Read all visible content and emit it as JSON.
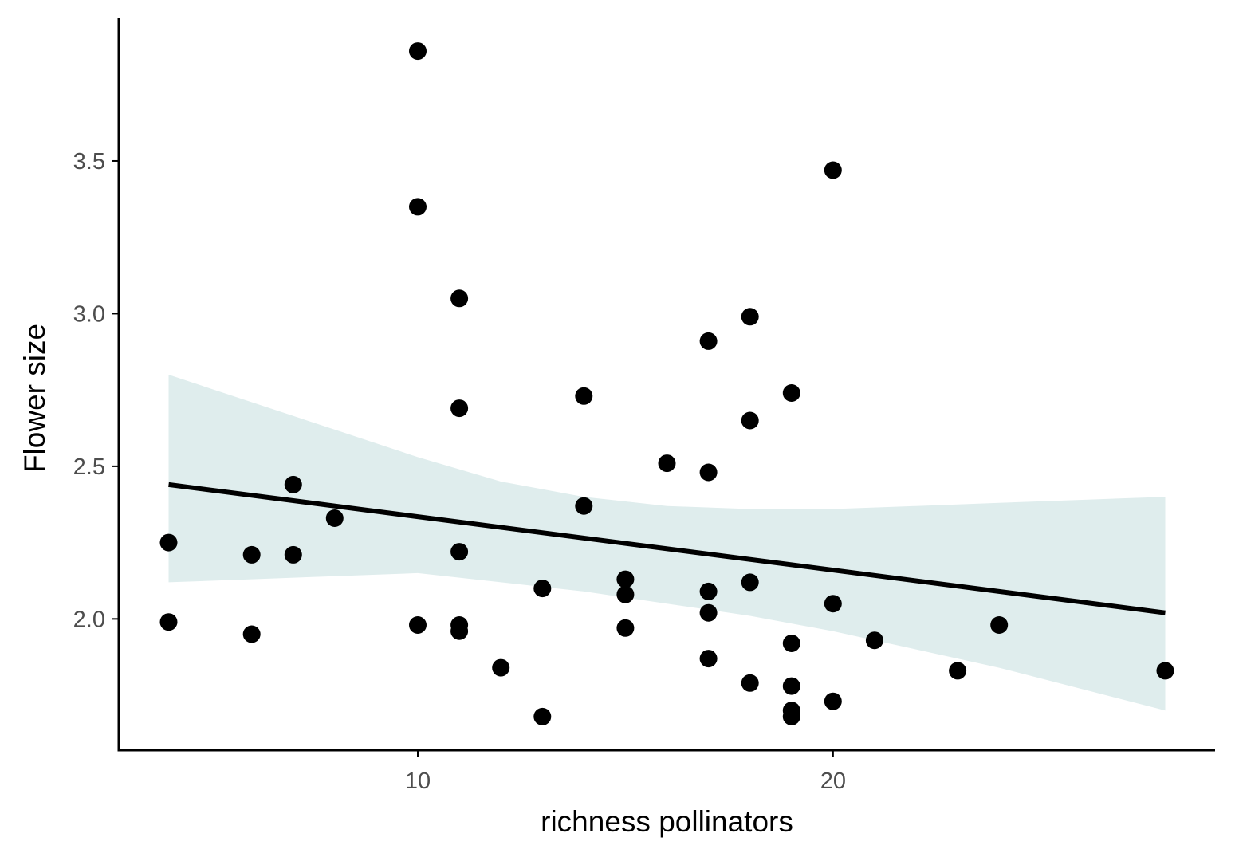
{
  "chart_data": {
    "type": "scatter",
    "title": "",
    "xlabel": "richness pollinators",
    "ylabel": "Flower size",
    "xlim": [
      2.8,
      29.2
    ],
    "ylim": [
      1.57,
      3.97
    ],
    "x_ticks": [
      10,
      20
    ],
    "y_ticks": [
      2.0,
      2.5,
      3.0,
      3.5
    ],
    "x_tick_labels": [
      "10",
      "20"
    ],
    "y_tick_labels": [
      "2.0",
      "2.5",
      "3.0",
      "3.5"
    ],
    "grid": false,
    "legend": "none",
    "colors": {
      "points": "#000000",
      "fit_line": "#000000",
      "ribbon": "#dfeded",
      "axis": "#000000",
      "tick_label": "#4d4d4d"
    },
    "points": [
      {
        "x": 4,
        "y": 2.25
      },
      {
        "x": 4,
        "y": 1.99
      },
      {
        "x": 6,
        "y": 2.21
      },
      {
        "x": 6,
        "y": 1.95
      },
      {
        "x": 7,
        "y": 2.44
      },
      {
        "x": 7,
        "y": 2.21
      },
      {
        "x": 8,
        "y": 2.33
      },
      {
        "x": 10,
        "y": 3.86
      },
      {
        "x": 10,
        "y": 3.35
      },
      {
        "x": 10,
        "y": 1.98
      },
      {
        "x": 11,
        "y": 3.05
      },
      {
        "x": 11,
        "y": 2.69
      },
      {
        "x": 11,
        "y": 2.22
      },
      {
        "x": 11,
        "y": 1.98
      },
      {
        "x": 11,
        "y": 1.96
      },
      {
        "x": 12,
        "y": 1.84
      },
      {
        "x": 13,
        "y": 2.1
      },
      {
        "x": 13,
        "y": 1.68
      },
      {
        "x": 14,
        "y": 2.73
      },
      {
        "x": 14,
        "y": 2.37
      },
      {
        "x": 15,
        "y": 2.13
      },
      {
        "x": 15,
        "y": 2.08
      },
      {
        "x": 15,
        "y": 1.97
      },
      {
        "x": 16,
        "y": 2.51
      },
      {
        "x": 17,
        "y": 2.91
      },
      {
        "x": 17,
        "y": 2.48
      },
      {
        "x": 17,
        "y": 2.09
      },
      {
        "x": 17,
        "y": 2.02
      },
      {
        "x": 17,
        "y": 1.87
      },
      {
        "x": 18,
        "y": 2.99
      },
      {
        "x": 18,
        "y": 2.65
      },
      {
        "x": 18,
        "y": 2.12
      },
      {
        "x": 18,
        "y": 1.79
      },
      {
        "x": 19,
        "y": 2.74
      },
      {
        "x": 19,
        "y": 1.92
      },
      {
        "x": 19,
        "y": 1.78
      },
      {
        "x": 19,
        "y": 1.7
      },
      {
        "x": 19,
        "y": 1.68
      },
      {
        "x": 20,
        "y": 3.47
      },
      {
        "x": 20,
        "y": 2.05
      },
      {
        "x": 20,
        "y": 1.73
      },
      {
        "x": 21,
        "y": 1.93
      },
      {
        "x": 23,
        "y": 1.83
      },
      {
        "x": 24,
        "y": 1.98
      },
      {
        "x": 28,
        "y": 1.83
      }
    ],
    "fit_line": {
      "x": [
        4,
        28
      ],
      "y": [
        2.44,
        2.02
      ]
    },
    "confidence_band": [
      {
        "x": 4,
        "lower": 2.12,
        "upper": 2.8
      },
      {
        "x": 6,
        "lower": 2.13,
        "upper": 2.71
      },
      {
        "x": 8,
        "lower": 2.14,
        "upper": 2.62
      },
      {
        "x": 10,
        "lower": 2.15,
        "upper": 2.53
      },
      {
        "x": 12,
        "lower": 2.12,
        "upper": 2.45
      },
      {
        "x": 14,
        "lower": 2.09,
        "upper": 2.4
      },
      {
        "x": 16,
        "lower": 2.05,
        "upper": 2.37
      },
      {
        "x": 18,
        "lower": 2.01,
        "upper": 2.36
      },
      {
        "x": 20,
        "lower": 1.96,
        "upper": 2.36
      },
      {
        "x": 22,
        "lower": 1.9,
        "upper": 2.37
      },
      {
        "x": 24,
        "lower": 1.84,
        "upper": 2.38
      },
      {
        "x": 26,
        "lower": 1.77,
        "upper": 2.39
      },
      {
        "x": 28,
        "lower": 1.7,
        "upper": 2.4
      }
    ]
  }
}
